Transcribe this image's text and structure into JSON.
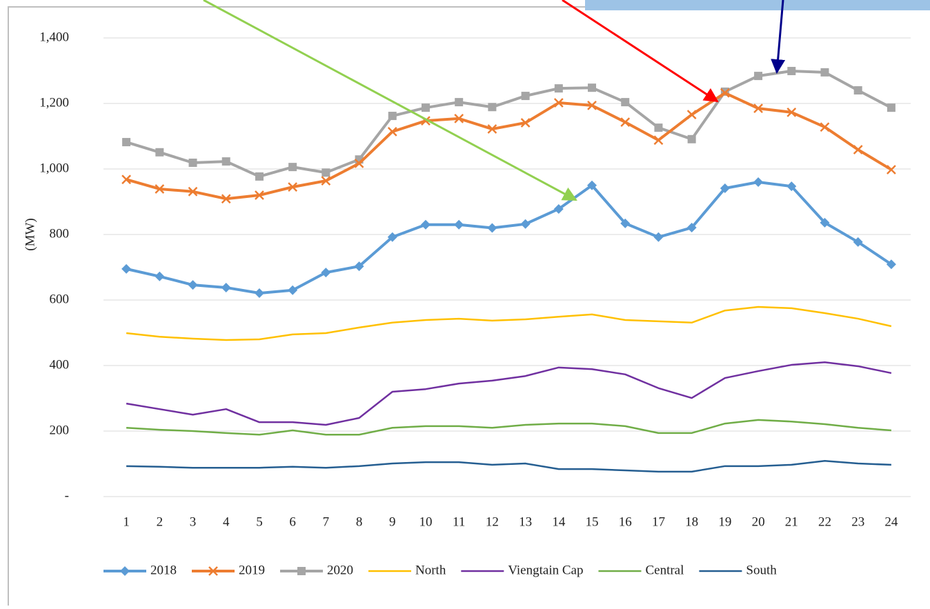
{
  "chart_data": {
    "type": "line",
    "y_label": "(MW)",
    "categories": [
      "1",
      "2",
      "3",
      "4",
      "5",
      "6",
      "7",
      "8",
      "9",
      "10",
      "11",
      "12",
      "13",
      "14",
      "15",
      "16",
      "17",
      "18",
      "19",
      "20",
      "21",
      "22",
      "23",
      "24"
    ],
    "ylim": [
      0,
      1400
    ],
    "yticks": [
      {
        "value": 0,
        "label": "-"
      },
      200,
      400,
      600,
      800,
      {
        "value": 1000,
        "label": "1,000"
      },
      {
        "value": 1200,
        "label": "1,200"
      },
      {
        "value": 1400,
        "label": "1,400"
      }
    ],
    "grid": true,
    "legend": "bottom",
    "series": [
      {
        "name": "2018",
        "color": "#5b9bd5",
        "marker": "diamond",
        "values": [
          695,
          672,
          646,
          638,
          621,
          630,
          684,
          703,
          792,
          830,
          830,
          820,
          832,
          878,
          950,
          834,
          792,
          821,
          941,
          960,
          947,
          836,
          777,
          709
        ]
      },
      {
        "name": "2019",
        "color": "#ed7d31",
        "marker": "x",
        "values": [
          968,
          939,
          931,
          909,
          920,
          945,
          964,
          1017,
          1114,
          1147,
          1154,
          1122,
          1141,
          1202,
          1194,
          1143,
          1088,
          1166,
          1232,
          1185,
          1173,
          1128,
          1059,
          998
        ]
      },
      {
        "name": "2020",
        "color": "#a5a5a5",
        "marker": "square",
        "values": [
          1082,
          1051,
          1019,
          1023,
          977,
          1006,
          989,
          1029,
          1162,
          1187,
          1204,
          1189,
          1223,
          1246,
          1248,
          1204,
          1126,
          1091,
          1236,
          1284,
          1299,
          1295,
          1240,
          1187
        ]
      },
      {
        "name": "North",
        "color": "#ffc000",
        "values": [
          499,
          488,
          482,
          478,
          480,
          495,
          499,
          516,
          531,
          539,
          543,
          537,
          541,
          549,
          556,
          539,
          535,
          531,
          568,
          579,
          575,
          560,
          543,
          520
        ]
      },
      {
        "name": "Viengtain Cap",
        "color": "#7030a0",
        "values": [
          284,
          267,
          250,
          267,
          227,
          227,
          219,
          240,
          320,
          328,
          345,
          354,
          368,
          394,
          389,
          373,
          331,
          301,
          362,
          383,
          402,
          410,
          398,
          377
        ]
      },
      {
        "name": "Central",
        "color": "#70ad47",
        "values": [
          210,
          204,
          200,
          194,
          189,
          202,
          189,
          189,
          210,
          215,
          215,
          210,
          219,
          223,
          223,
          215,
          194,
          194,
          223,
          234,
          229,
          221,
          210,
          202
        ]
      },
      {
        "name": "South",
        "color": "#255e91",
        "values": [
          93,
          91,
          88,
          88,
          88,
          91,
          88,
          93,
          101,
          105,
          105,
          97,
          101,
          84,
          84,
          80,
          76,
          76,
          93,
          93,
          97,
          109,
          101,
          97
        ]
      }
    ]
  }
}
